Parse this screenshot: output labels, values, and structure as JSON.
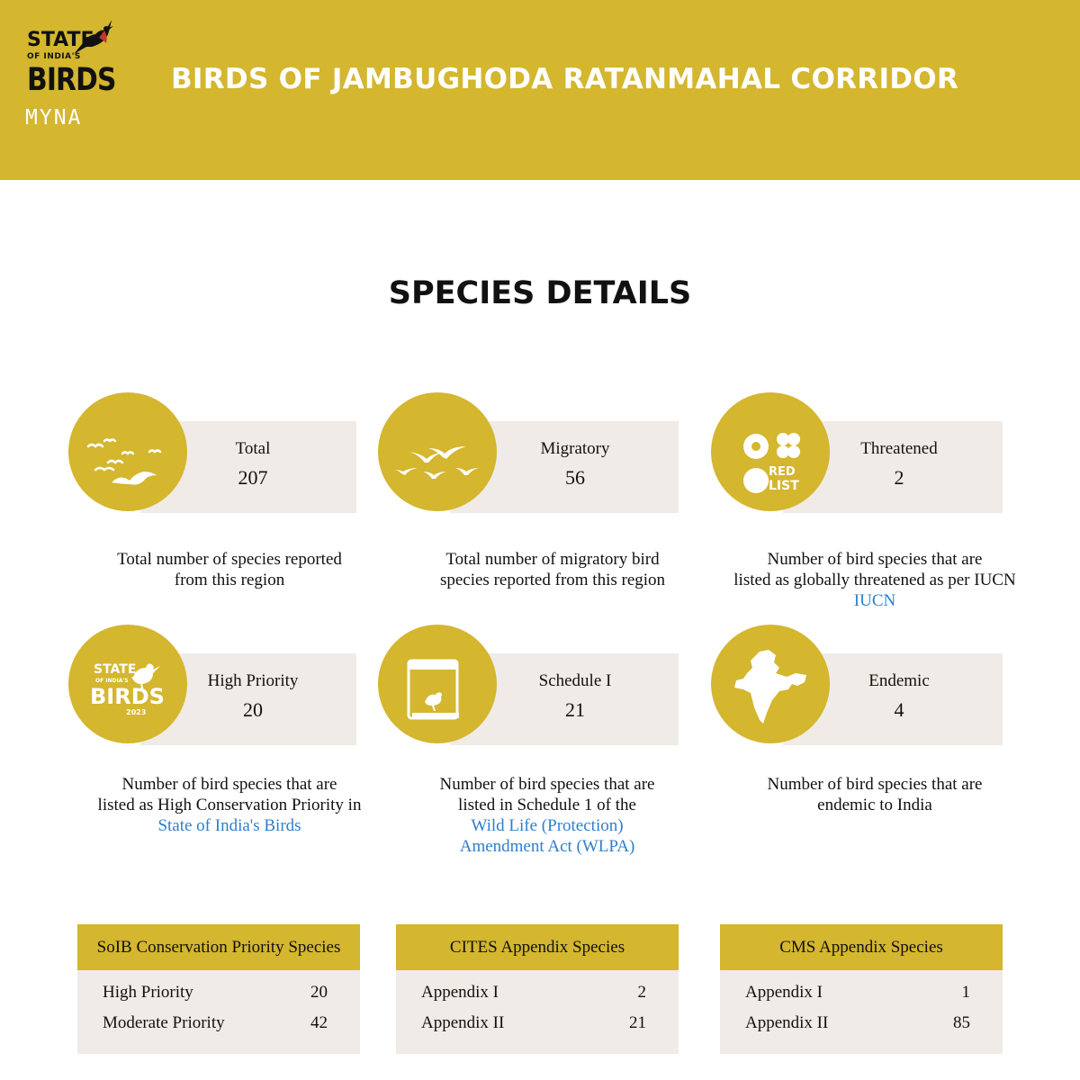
{
  "header": {
    "logo": {
      "line1": "STATE",
      "line2": "OF INDIA'S",
      "line3": "BIRDS",
      "brand": "MYNA"
    },
    "title": "BIRDS OF JAMBUGHODA RATANMAHAL CORRIDOR"
  },
  "section_title": "SPECIES DETAILS",
  "colors": {
    "gold": "#d4b62f",
    "panel": "#f0ebe6",
    "link": "#2d7fcd"
  },
  "stats": {
    "total": {
      "label": "Total",
      "value": "207",
      "desc1": "Total number of species reported",
      "desc2": "from this region",
      "icon": "flock-of-birds-icon"
    },
    "migratory": {
      "label": "Migratory",
      "value": "56",
      "desc1": "Total number of migratory bird",
      "desc2": "species reported from this region",
      "icon": "migrating-birds-icon"
    },
    "threatened": {
      "label": "Threatened",
      "value": "2",
      "desc1": "Number of bird species that are",
      "desc2": "listed as globally threatened as per IUCN",
      "link": "IUCN",
      "icon": "red-list-icon",
      "icon_text1": "RED",
      "icon_text2": "LIST"
    },
    "high_priority": {
      "label": "High Priority",
      "value": "20",
      "desc1": "Number of bird species that are",
      "desc2": "listed as High Conservation Priority in",
      "link": "State of India's Birds",
      "icon": "soib-logo-icon",
      "icon_text1": "STATE",
      "icon_text2": "OF INDIA'S",
      "icon_text3": "BIRDS",
      "icon_text4": "2023"
    },
    "schedule1": {
      "label": "Schedule I",
      "value": "21",
      "desc1": "Number of bird species that are",
      "desc2": "listed in Schedule 1 of the",
      "link1": "Wild Life (Protection)",
      "link2": "Amendment Act (WLPA)",
      "icon": "book-bird-icon"
    },
    "endemic": {
      "label": "Endemic",
      "value": "4",
      "desc1": "Number of bird species that are",
      "desc2": "endemic to India",
      "icon": "india-map-icon"
    }
  },
  "tables": {
    "soib": {
      "title": "SoIB Conservation Priority Species",
      "rows": [
        {
          "label": "High Priority",
          "value": "20"
        },
        {
          "label": "Moderate Priority",
          "value": "42"
        }
      ]
    },
    "cites": {
      "title": "CITES Appendix Species",
      "rows": [
        {
          "label": "Appendix I",
          "value": "2"
        },
        {
          "label": "Appendix II",
          "value": "21"
        }
      ]
    },
    "cms": {
      "title": "CMS Appendix Species",
      "rows": [
        {
          "label": "Appendix I",
          "value": "1"
        },
        {
          "label": "Appendix II",
          "value": "85"
        }
      ]
    }
  }
}
